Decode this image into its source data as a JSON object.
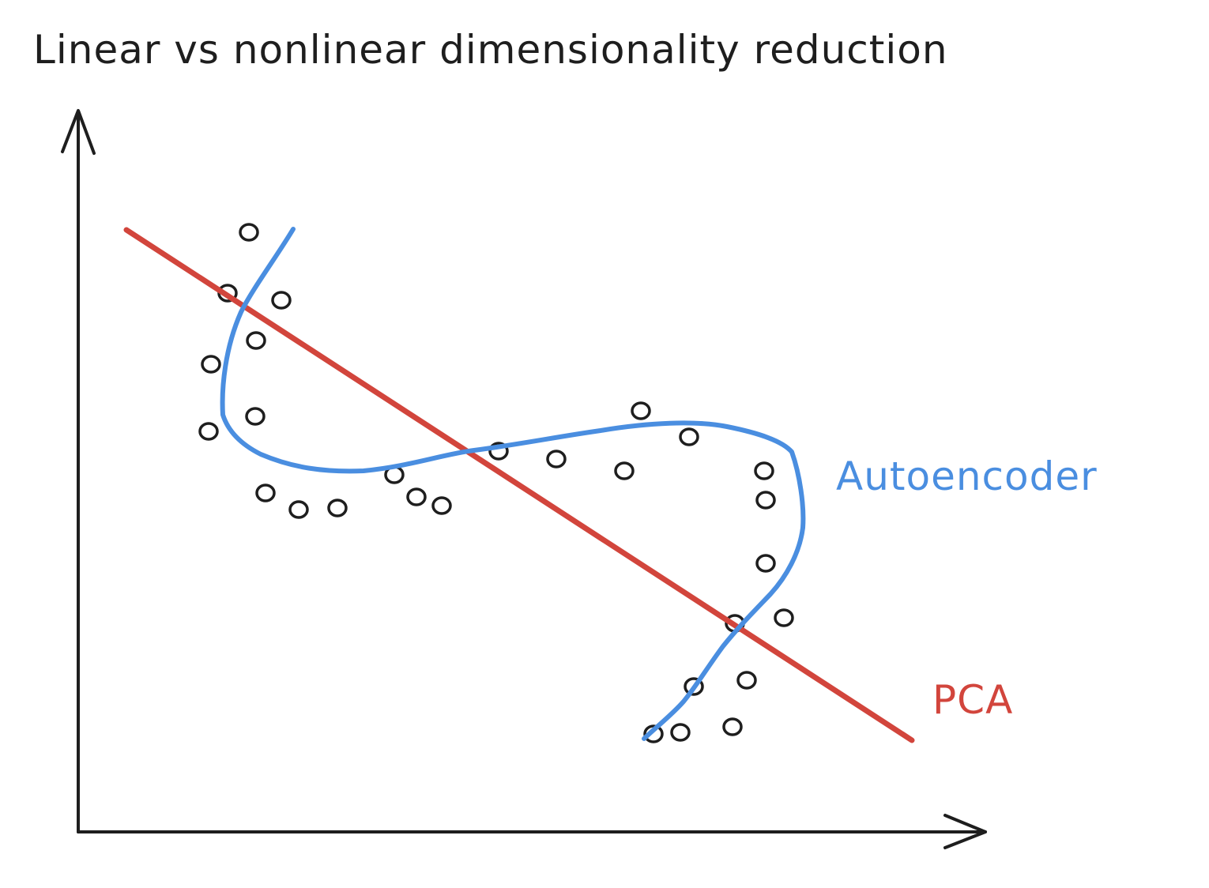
{
  "title": "Linear vs nonlinear dimensionality reduction",
  "labels": {
    "autoencoder": "Autoencoder",
    "pca": "PCA"
  },
  "colors": {
    "ink": "#1e1e1e",
    "autoencoder": "#4a8ee0",
    "pca": "#d2453c",
    "background": "#ffffff"
  }
}
